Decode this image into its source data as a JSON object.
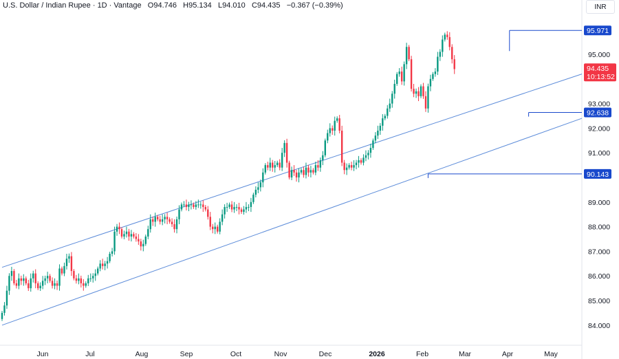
{
  "legend": {
    "symbol": "U.S. Dollar / Indian Rupee · 1D · Vantage",
    "open_label": "O",
    "open": "94.746",
    "high_label": "H",
    "high": "95.134",
    "low_label": "L",
    "low": "94.010",
    "close_label": "C",
    "close": "94.435",
    "change": "−0.367 (−0.39%)"
  },
  "currency": "INR",
  "colors": {
    "up": "#089981",
    "down": "#f23645",
    "line": "#5b8bd9",
    "marker": "#1848cc",
    "price_tag": "#f23645"
  },
  "chart_data": {
    "type": "candlestick",
    "y_ticks": [
      "95.000",
      "93.000",
      "92.000",
      "91.000",
      "89.000",
      "88.000",
      "87.000",
      "86.000",
      "85.000",
      "84.000"
    ],
    "x_ticks": [
      {
        "label": "Jun",
        "bold": false
      },
      {
        "label": "Jul",
        "bold": false
      },
      {
        "label": "Aug",
        "bold": false
      },
      {
        "label": "Sep",
        "bold": false
      },
      {
        "label": "Oct",
        "bold": false
      },
      {
        "label": "Nov",
        "bold": false
      },
      {
        "label": "Dec",
        "bold": false
      },
      {
        "label": "2026",
        "bold": true
      },
      {
        "label": "Feb",
        "bold": false
      },
      {
        "label": "Mar",
        "bold": false
      },
      {
        "label": "Apr",
        "bold": false
      },
      {
        "label": "May",
        "bold": false
      }
    ],
    "price_labels": [
      {
        "value": "95.971",
        "type": "marker"
      },
      {
        "value": "92.638",
        "type": "marker"
      },
      {
        "value": "90.143",
        "type": "marker"
      }
    ],
    "last_price": {
      "value": "94.435",
      "countdown": "10:13:52"
    },
    "channel": {
      "upper": [
        [
          0,
          86.35
        ],
        [
          233,
          94.2
        ]
      ],
      "lower": [
        [
          0,
          84.0
        ],
        [
          233,
          92.4
        ]
      ]
    },
    "closes": [
      84.5,
      84.8,
      85.4,
      86.0,
      86.2,
      85.7,
      85.6,
      85.9,
      85.8,
      85.9,
      85.7,
      85.5,
      85.9,
      86.1,
      85.7,
      85.5,
      85.6,
      85.8,
      85.9,
      86.0,
      85.8,
      85.6,
      85.7,
      85.6,
      86.3,
      86.1,
      86.4,
      86.7,
      86.8,
      86.2,
      85.9,
      85.8,
      85.9,
      85.7,
      85.6,
      85.7,
      85.9,
      85.9,
      86.0,
      86.1,
      86.3,
      86.5,
      86.4,
      86.5,
      86.6,
      86.9,
      87.0,
      87.8,
      88.0,
      87.9,
      87.6,
      87.7,
      87.8,
      87.6,
      87.7,
      87.6,
      87.5,
      87.4,
      87.2,
      87.3,
      87.6,
      87.9,
      88.3,
      88.2,
      88.4,
      88.3,
      88.2,
      88.3,
      88.4,
      88.3,
      88.2,
      88.1,
      87.9,
      88.3,
      88.7,
      88.9,
      88.9,
      88.8,
      88.9,
      88.9,
      88.8,
      88.9,
      88.9,
      88.9,
      88.8,
      88.7,
      88.4,
      88.0,
      87.9,
      88.0,
      87.8,
      88.2,
      88.5,
      88.8,
      88.8,
      88.9,
      88.7,
      88.8,
      88.8,
      88.7,
      88.6,
      88.7,
      88.8,
      88.8,
      89.0,
      89.3,
      89.5,
      89.6,
      89.8,
      90.2,
      90.5,
      90.4,
      90.6,
      90.4,
      90.5,
      90.6,
      90.4,
      91.0,
      91.4,
      90.6,
      90.0,
      90.3,
      90.2,
      90.0,
      90.2,
      90.3,
      90.1,
      90.4,
      90.2,
      90.3,
      90.2,
      90.5,
      90.4,
      90.7,
      90.9,
      91.5,
      91.8,
      92.0,
      91.9,
      92.3,
      92.4,
      91.9,
      90.6,
      90.3,
      90.4,
      90.5,
      90.4,
      90.5,
      90.6,
      90.7,
      90.6,
      90.8,
      90.9,
      91.0,
      91.2,
      91.5,
      91.7,
      91.9,
      92.1,
      92.4,
      92.5,
      92.8,
      93.0,
      93.4,
      93.8,
      94.2,
      94.3,
      93.9,
      94.6,
      95.3,
      94.8,
      93.6,
      93.4,
      93.5,
      93.3,
      93.7,
      93.3,
      92.8,
      93.7,
      94.0,
      94.2,
      94.3,
      94.9,
      95.1,
      95.6,
      95.8,
      95.7,
      95.3,
      94.8,
      94.4
    ]
  }
}
